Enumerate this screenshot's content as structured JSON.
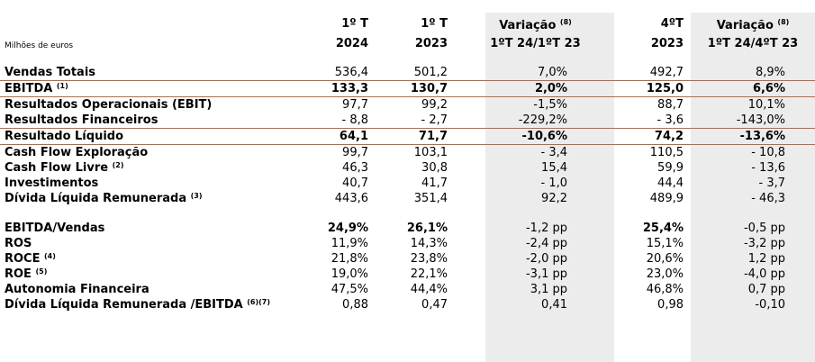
{
  "header": {
    "units_label": "Milhões de euros",
    "col1": {
      "line1": "1º T",
      "line2": "2024"
    },
    "col2": {
      "line1": "1º T",
      "line2": "2023"
    },
    "col3": {
      "line1": "Variação",
      "sup": "(8)",
      "line2": "1ºT 24/1ºT 23"
    },
    "col4": {
      "line1": "4ºT",
      "line2": "2023"
    },
    "col5": {
      "line1": "Variação",
      "sup": "(8)",
      "line2": "1ºT 24/4ºT 23"
    }
  },
  "rows": [
    {
      "label": "Vendas Totais",
      "sup": "",
      "values": [
        "536,4",
        "501,2",
        "7,0%",
        "492,7",
        "8,9%"
      ]
    },
    {
      "label": "EBITDA",
      "sup": "(1)",
      "values": [
        "133,3",
        "130,7",
        "2,0%",
        "125,0",
        "6,6%"
      ]
    },
    {
      "label": "Resultados Operacionais (EBIT)",
      "sup": "",
      "values": [
        "97,7",
        "99,2",
        "-1,5%",
        "88,7",
        "10,1%"
      ]
    },
    {
      "label": "Resultados Financeiros",
      "sup": "",
      "values": [
        "- 8,8",
        "- 2,7",
        "-229,2%",
        "- 3,6",
        "-143,0%"
      ]
    },
    {
      "label": "Resultado Líquido",
      "sup": "",
      "values": [
        "64,1",
        "71,7",
        "-10,6%",
        "74,2",
        "-13,6%"
      ]
    },
    {
      "label": "Cash Flow Exploração",
      "sup": "",
      "values": [
        "99,7",
        "103,1",
        "- 3,4",
        "110,5",
        "- 10,8"
      ]
    },
    {
      "label": "Cash Flow Livre",
      "sup": "(2)",
      "values": [
        "46,3",
        "30,8",
        "15,4",
        "59,9",
        "- 13,6"
      ]
    },
    {
      "label": "Investimentos",
      "sup": "",
      "values": [
        "40,7",
        "41,7",
        "- 1,0",
        "44,4",
        "- 3,7"
      ]
    },
    {
      "label": "Dívida Líquida Remunerada",
      "sup": "(3)",
      "values": [
        "443,6",
        "351,4",
        "92,2",
        "489,9",
        "- 46,3"
      ]
    },
    {
      "label": "EBITDA/Vendas",
      "sup": "",
      "values": [
        "24,9%",
        "26,1%",
        "-1,2 pp",
        "25,4%",
        "-0,5 pp"
      ]
    },
    {
      "label": "ROS",
      "sup": "",
      "values": [
        "11,9%",
        "14,3%",
        "-2,4 pp",
        "15,1%",
        "-3,2 pp"
      ]
    },
    {
      "label": "ROCE",
      "sup": "(4)",
      "values": [
        "21,8%",
        "23,8%",
        "-2,0 pp",
        "20,6%",
        "1,2 pp"
      ]
    },
    {
      "label": "ROE",
      "sup": "(5)",
      "values": [
        "19,0%",
        "22,1%",
        "-3,1 pp",
        "23,0%",
        "-4,0 pp"
      ]
    },
    {
      "label": "Autonomia Financeira",
      "sup": "",
      "values": [
        "47,5%",
        "44,4%",
        "3,1 pp",
        "46,8%",
        "0,7 pp"
      ]
    },
    {
      "label": "Dívida Líquida Remunerada /EBITDA",
      "sup": "(6)(7)",
      "values": [
        "0,88",
        "0,47",
        "0,41",
        "0,98",
        "-0,10"
      ]
    }
  ],
  "accent_color": "#c8623c",
  "shade_color": "#ececec"
}
